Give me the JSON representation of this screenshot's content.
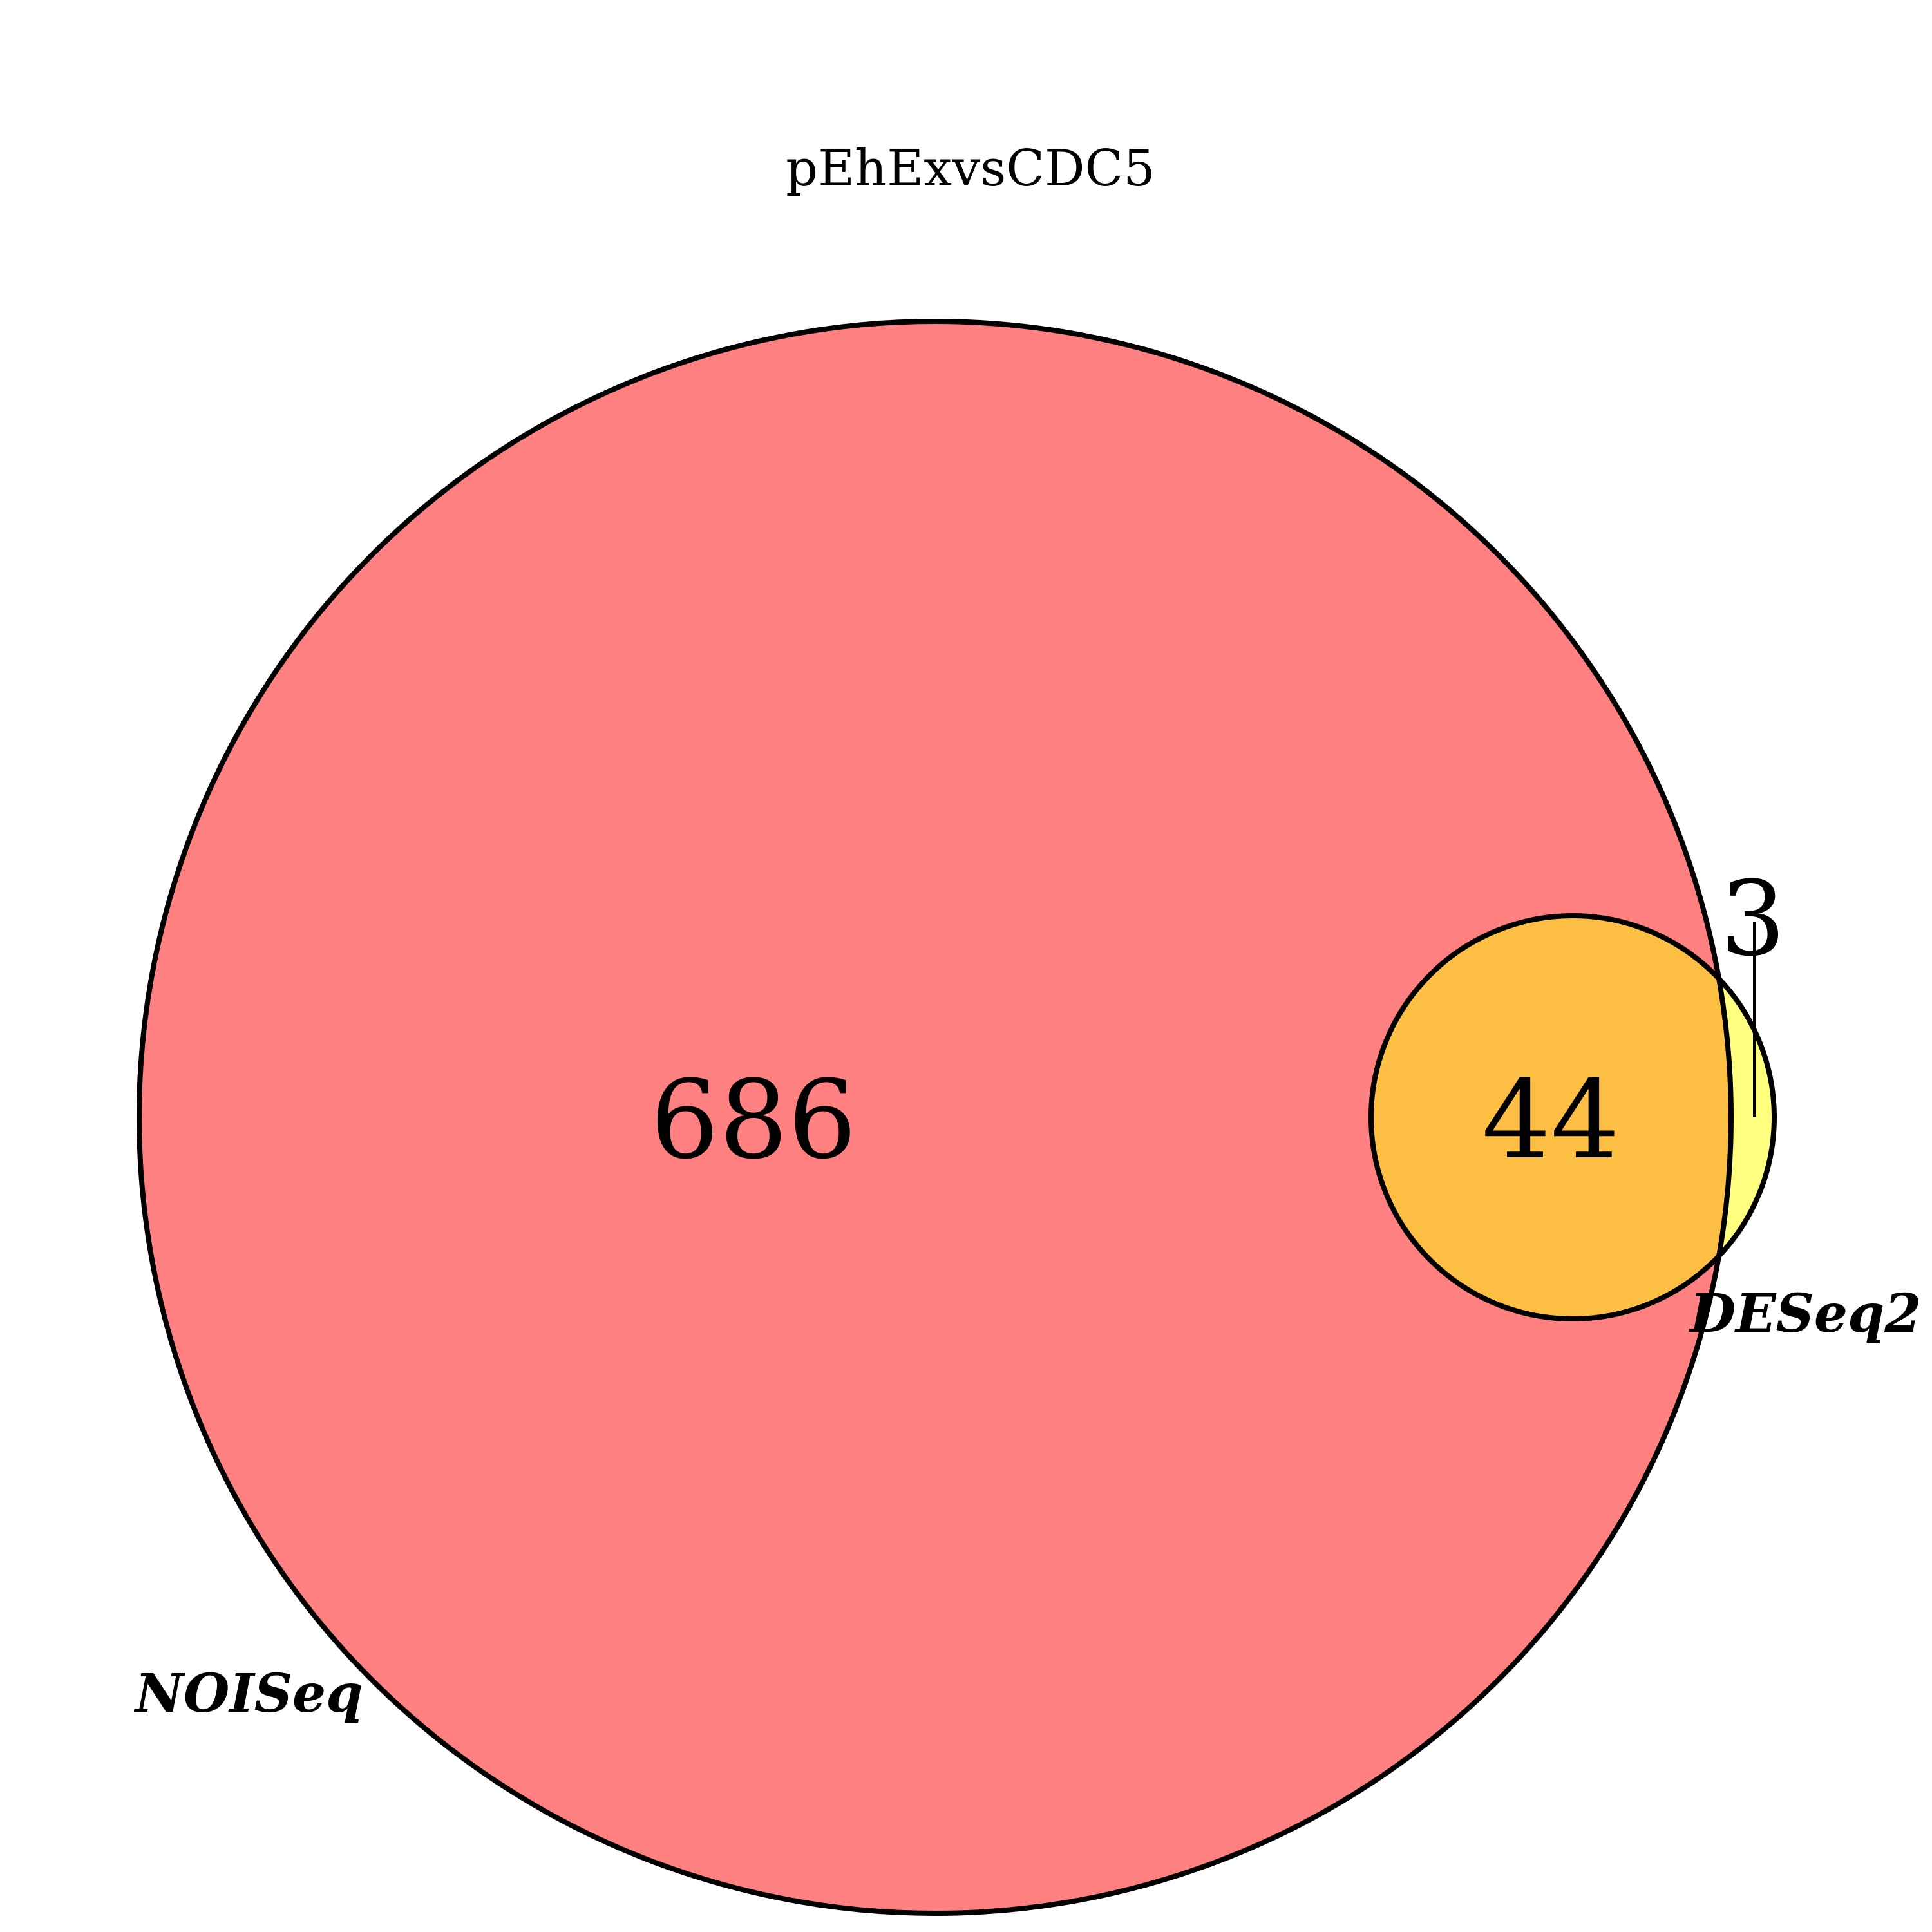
{
  "title": "pEhExvsCDC5",
  "sets": [
    {
      "name": "NOISeq",
      "color": "#ff8080"
    },
    {
      "name": "DESeq2",
      "color": "#ffff80"
    }
  ],
  "overlap_color": "#fcbf44",
  "regions": {
    "noiseq_only": "686",
    "both": "44",
    "deseq2_only": "3"
  }
}
